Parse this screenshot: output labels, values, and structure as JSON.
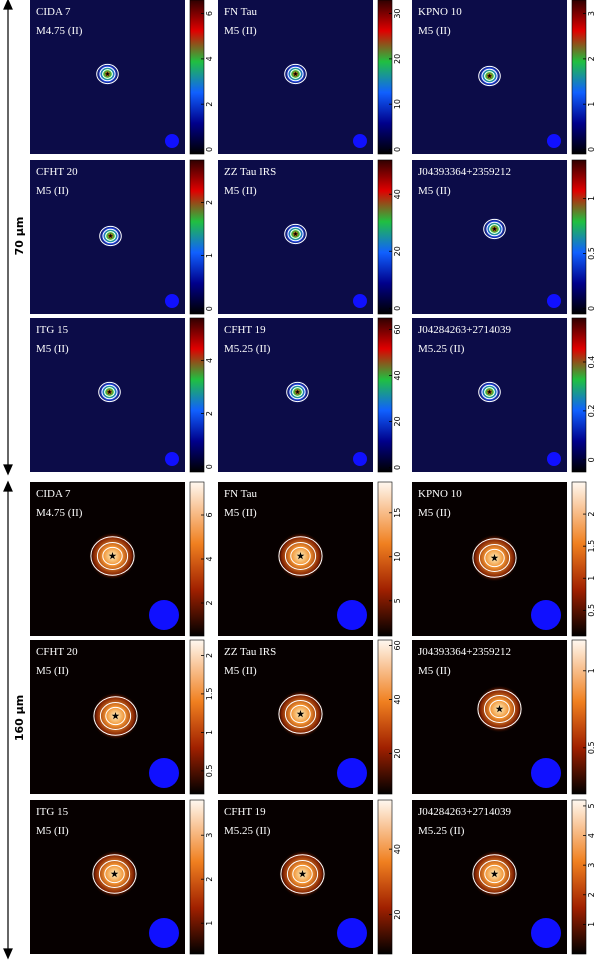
{
  "bands": [
    {
      "label": "70 µm",
      "panels": [
        {
          "name": "CIDA 7",
          "spt": "M4.75 (II)",
          "clim": [
            -0.2,
            6.6
          ],
          "ticks": [
            0,
            2,
            4,
            6
          ]
        },
        {
          "name": "FN Tau",
          "spt": "M5 (II)",
          "clim": [
            -1,
            33
          ],
          "ticks": [
            0,
            10,
            20,
            30
          ]
        },
        {
          "name": "KPNO 10",
          "spt": "M5 (II)",
          "clim": [
            -0.1,
            3.3
          ],
          "ticks": [
            0,
            1,
            2,
            3
          ]
        },
        {
          "name": "CFHT 20",
          "spt": "M5 (II)",
          "clim": [
            -0.1,
            2.8
          ],
          "ticks": [
            0,
            1,
            2
          ]
        },
        {
          "name": "ZZ Tau IRS",
          "spt": "M5 (II)",
          "clim": [
            -2,
            52
          ],
          "ticks": [
            0,
            20,
            40
          ]
        },
        {
          "name": "J04393364+2359212",
          "spt": "M5 (II)",
          "clim": [
            -0.05,
            1.35
          ],
          "ticks": [
            0,
            0.5,
            1
          ]
        },
        {
          "name": "ITG 15",
          "spt": "M5 (II)",
          "clim": [
            -0.2,
            5.6
          ],
          "ticks": [
            0,
            2,
            4
          ]
        },
        {
          "name": "CFHT 19",
          "spt": "M5.25 (II)",
          "clim": [
            -2,
            65
          ],
          "ticks": [
            0,
            20,
            40,
            60
          ]
        },
        {
          "name": "J04284263+2714039",
          "spt": "M5.25 (II)",
          "clim": [
            -0.05,
            0.58
          ],
          "ticks": [
            0,
            0.2,
            0.4
          ]
        }
      ]
    },
    {
      "label": "160 µm",
      "panels": [
        {
          "name": "CIDA 7",
          "spt": "M4.75 (II)",
          "clim": [
            0.5,
            7.5
          ],
          "ticks": [
            2,
            4,
            6
          ]
        },
        {
          "name": "FN Tau",
          "spt": "M5 (II)",
          "clim": [
            1,
            18.5
          ],
          "ticks": [
            5,
            10,
            15
          ]
        },
        {
          "name": "KPNO 10",
          "spt": "M5 (II)",
          "clim": [
            0.1,
            2.5
          ],
          "ticks": [
            0.5,
            1,
            1.5,
            2
          ]
        },
        {
          "name": "CFHT 20",
          "spt": "M5 (II)",
          "clim": [
            0.2,
            2.2
          ],
          "ticks": [
            0.5,
            1,
            1.5,
            2
          ]
        },
        {
          "name": "ZZ Tau IRS",
          "spt": "M5 (II)",
          "clim": [
            5,
            62
          ],
          "ticks": [
            20,
            40,
            60
          ]
        },
        {
          "name": "J04393364+2359212",
          "spt": "M5 (II)",
          "clim": [
            0.2,
            1.2
          ],
          "ticks": [
            0.5,
            1
          ]
        },
        {
          "name": "ITG 15",
          "spt": "M5 (II)",
          "clim": [
            0.3,
            3.8
          ],
          "ticks": [
            1,
            2,
            3
          ]
        },
        {
          "name": "CFHT 19",
          "spt": "M5.25 (II)",
          "clim": [
            8,
            55
          ],
          "ticks": [
            20,
            40
          ]
        },
        {
          "name": "J04284263+2714039",
          "spt": "M5.25 (II)",
          "clim": [
            0,
            5.2
          ],
          "ticks": [
            1,
            2,
            3,
            4,
            5
          ]
        }
      ]
    }
  ]
}
